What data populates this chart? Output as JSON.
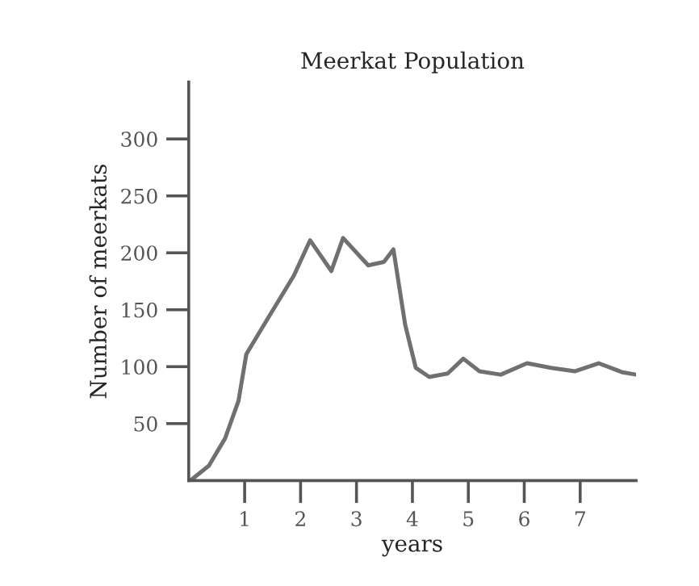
{
  "chart_data": {
    "type": "line",
    "title": "Meerkat Population",
    "xlabel": "years",
    "ylabel": "Number of meerkats",
    "x": [
      0.03,
      0.36,
      0.65,
      0.89,
      1.03,
      1.41,
      1.88,
      2.17,
      2.55,
      2.76,
      3.21,
      3.49,
      3.66,
      3.87,
      4.06,
      4.3,
      4.63,
      4.91,
      5.2,
      5.58,
      6.05,
      6.48,
      6.91,
      7.33,
      7.76,
      8.0
    ],
    "series": [
      {
        "color": "#707070",
        "values": [
          0,
          13,
          37,
          70,
          111,
          142,
          180,
          211,
          184,
          213,
          189,
          192,
          203,
          137,
          99,
          91,
          94,
          107,
          96,
          93,
          103,
          99,
          96,
          103,
          95,
          93
        ]
      }
    ],
    "xlim": [
      0,
      8
    ],
    "ylim": [
      0,
      350
    ],
    "xticks": [
      1,
      2,
      3,
      4,
      5,
      6,
      7
    ],
    "yticks": [
      50,
      100,
      150,
      200,
      250,
      300
    ],
    "grid": false,
    "legend": false,
    "marker": "none",
    "line_style": "solid"
  }
}
